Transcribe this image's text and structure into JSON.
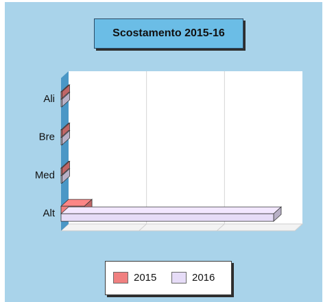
{
  "chart_data": {
    "type": "bar",
    "orientation": "horizontal",
    "title": "Scostamento 2015-16",
    "categories": [
      "Ali",
      "Bre",
      "Med",
      "Alt"
    ],
    "series": [
      {
        "name": "2015",
        "values": [
          0,
          0,
          0,
          1.1
        ],
        "color": "#f08080"
      },
      {
        "name": "2016",
        "values": [
          0,
          0,
          0,
          10.0
        ],
        "color": "#e6dcf7"
      }
    ],
    "xlim": [
      0,
      11
    ],
    "grid": true,
    "legend_position": "bottom",
    "colors": {
      "background": "#a9d3ea",
      "title_box": "#6bbde6",
      "plot_area": "#ffffff",
      "left_wall": "#4a97c6"
    }
  }
}
